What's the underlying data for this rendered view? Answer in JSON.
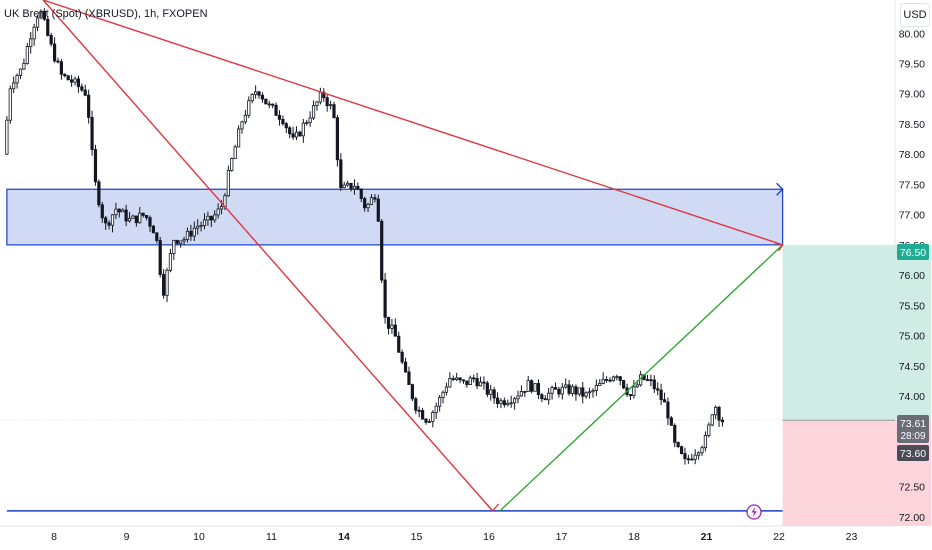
{
  "header": {
    "title": "UK Brent (Spot) (XBRUSD), 1h, FXOPEN",
    "currency": "USD"
  },
  "colors": {
    "bullish": "#131722",
    "zone_fill": "#d0daf5",
    "zone_border": "#1a3fc4",
    "trend_line": "#e0353e",
    "green_line": "#27a52a",
    "target_fill": "#cfede5",
    "stop_fill": "#fbd5d9",
    "price_tag_green": "#22ab94",
    "price_tag_gray": "#6a6d78",
    "price_tag_dark": "#4a4d58",
    "lightning": "#9c27b0"
  },
  "price_labels": {
    "target": "76.50",
    "last": "73.61",
    "countdown": "28:09",
    "entry": "73.60"
  },
  "icons": {
    "lightning": "lightning-icon"
  },
  "chart_data": {
    "type": "candlestick",
    "title": "UK Brent (Spot) (XBRUSD), 1h, FXOPEN",
    "y_unit": "USD",
    "ylim": [
      71.85,
      80.55
    ],
    "y_ticks": [
      72.0,
      72.5,
      73.0,
      73.5,
      74.0,
      74.5,
      75.0,
      75.5,
      76.0,
      76.5,
      77.0,
      77.5,
      78.0,
      78.5,
      79.0,
      79.5,
      80.0
    ],
    "y_tick_labels": [
      "72.00",
      "72.50",
      "73.00",
      "73.50",
      "74.00",
      "74.50",
      "75.00",
      "75.50",
      "76.00",
      "76.50",
      "77.00",
      "77.50",
      "78.00",
      "78.50",
      "79.00",
      "79.50",
      "80.00"
    ],
    "x_ticks": [
      {
        "label": "8",
        "bold": false,
        "day": 8
      },
      {
        "label": "9",
        "bold": false,
        "day": 9
      },
      {
        "label": "10",
        "bold": false,
        "day": 10
      },
      {
        "label": "11",
        "bold": false,
        "day": 11
      },
      {
        "label": "14",
        "bold": true,
        "day": 12
      },
      {
        "label": "15",
        "bold": false,
        "day": 13
      },
      {
        "label": "16",
        "bold": false,
        "day": 14
      },
      {
        "label": "17",
        "bold": false,
        "day": 15
      },
      {
        "label": "18",
        "bold": false,
        "day": 16
      },
      {
        "label": "21",
        "bold": true,
        "day": 17
      },
      {
        "label": "22",
        "bold": false,
        "day": 18
      },
      {
        "label": "23",
        "bold": false,
        "day": 19
      }
    ],
    "price_path": [
      [
        7.35,
        78.0
      ],
      [
        7.45,
        79.2
      ],
      [
        7.6,
        79.4
      ],
      [
        7.75,
        80.1
      ],
      [
        7.85,
        80.4
      ],
      [
        8.0,
        79.8
      ],
      [
        8.15,
        79.3
      ],
      [
        8.3,
        79.2
      ],
      [
        8.5,
        79.0
      ],
      [
        8.6,
        77.6
      ],
      [
        8.75,
        76.8
      ],
      [
        8.9,
        77.1
      ],
      [
        9.1,
        76.9
      ],
      [
        9.3,
        77.0
      ],
      [
        9.45,
        76.7
      ],
      [
        9.55,
        75.7
      ],
      [
        9.7,
        76.6
      ],
      [
        9.85,
        76.6
      ],
      [
        10.0,
        76.8
      ],
      [
        10.2,
        76.9
      ],
      [
        10.35,
        77.1
      ],
      [
        10.5,
        77.9
      ],
      [
        10.65,
        78.6
      ],
      [
        10.85,
        79.1
      ],
      [
        11.0,
        78.8
      ],
      [
        11.2,
        78.6
      ],
      [
        11.35,
        78.2
      ],
      [
        11.5,
        78.5
      ],
      [
        11.65,
        78.8
      ],
      [
        11.75,
        79.0
      ],
      [
        11.9,
        78.7
      ],
      [
        12.0,
        77.4
      ],
      [
        12.2,
        77.5
      ],
      [
        12.35,
        77.1
      ],
      [
        12.5,
        77.4
      ],
      [
        12.6,
        75.3
      ],
      [
        12.75,
        75.0
      ],
      [
        12.9,
        74.3
      ],
      [
        13.05,
        73.8
      ],
      [
        13.2,
        73.6
      ],
      [
        13.35,
        73.9
      ],
      [
        13.5,
        74.3
      ],
      [
        13.7,
        74.2
      ],
      [
        13.85,
        74.3
      ],
      [
        14.0,
        74.1
      ],
      [
        14.2,
        73.9
      ],
      [
        14.4,
        74.0
      ],
      [
        14.6,
        74.2
      ],
      [
        14.8,
        74.0
      ],
      [
        15.0,
        74.1
      ],
      [
        15.2,
        74.1
      ],
      [
        15.4,
        74.0
      ],
      [
        15.6,
        74.2
      ],
      [
        15.8,
        74.4
      ],
      [
        16.0,
        74.0
      ],
      [
        16.15,
        74.3
      ],
      [
        16.3,
        74.2
      ],
      [
        16.5,
        73.8
      ],
      [
        16.6,
        73.2
      ],
      [
        16.75,
        72.9
      ],
      [
        16.9,
        73.1
      ],
      [
        17.05,
        73.3
      ],
      [
        17.15,
        73.9
      ],
      [
        17.25,
        73.6
      ]
    ],
    "annotations": {
      "resistance_zone": {
        "y_top": 77.42,
        "y_bottom": 76.5,
        "x_start": 7.35,
        "x_end": 18.05
      },
      "support_line": {
        "y": 72.1,
        "x_start": 7.35,
        "x_end": 18.05
      },
      "trend_lines": [
        {
          "x1": 7.85,
          "y1": 80.55,
          "x2": 18.05,
          "y2": 76.5
        },
        {
          "x1": 7.85,
          "y1": 80.55,
          "x2": 14.05,
          "y2": 72.1
        }
      ],
      "rise_line": {
        "x1": 14.15,
        "y1": 72.1,
        "x2": 18.05,
        "y2": 76.5
      },
      "position": {
        "entry": 73.6,
        "target": 76.5,
        "stop": 71.85,
        "x_start": 18.05,
        "x_end": 20.1
      }
    }
  }
}
